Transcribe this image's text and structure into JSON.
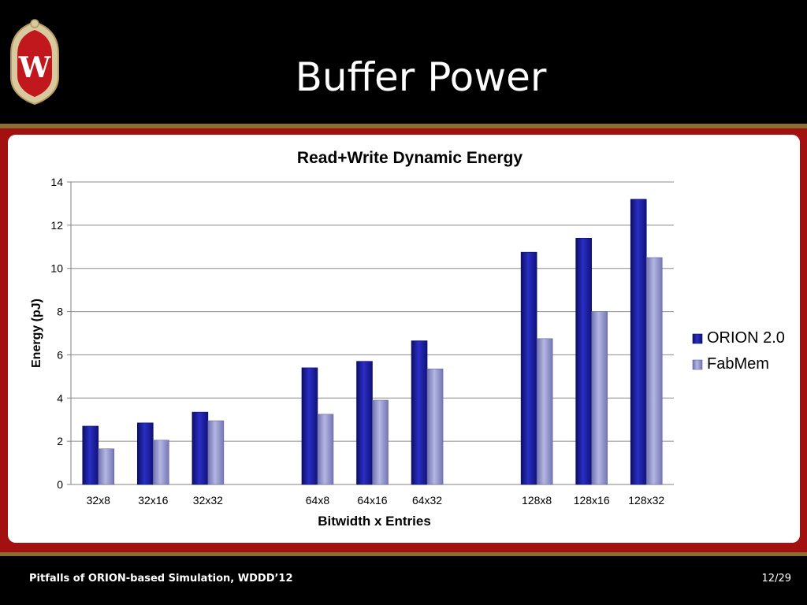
{
  "slide": {
    "title": "Buffer Power",
    "footer": "Pitfalls of ORION-based Simulation, WDDD’12",
    "page": "12/29"
  },
  "logo": {
    "letter": "W"
  },
  "colors": {
    "orion": "#1c1f9c",
    "fabmem": "#9395c8",
    "frame": "#a31010",
    "gold": "#8a6e32"
  },
  "chart_data": {
    "type": "bar",
    "title": "Read+Write Dynamic Energy",
    "xlabel": "Bitwidth x Entries",
    "ylabel": "Energy (pJ)",
    "ylim": [
      0,
      14
    ],
    "yticks": [
      0,
      2,
      4,
      6,
      8,
      10,
      12,
      14
    ],
    "grid": true,
    "legend_position": "right",
    "groups": [
      [
        "32x8",
        "32x16",
        "32x32"
      ],
      [
        "64x8",
        "64x16",
        "64x32"
      ],
      [
        "128x8",
        "128x16",
        "128x32"
      ]
    ],
    "categories": [
      "32x8",
      "32x16",
      "32x32",
      "64x8",
      "64x16",
      "64x32",
      "128x8",
      "128x16",
      "128x32"
    ],
    "series": [
      {
        "name": "ORION 2.0",
        "values": [
          2.7,
          2.85,
          3.35,
          5.4,
          5.7,
          6.65,
          10.75,
          11.4,
          13.2
        ]
      },
      {
        "name": "FabMem",
        "values": [
          1.65,
          2.05,
          2.95,
          3.25,
          3.9,
          5.35,
          6.75,
          8.0,
          10.5
        ]
      }
    ]
  }
}
